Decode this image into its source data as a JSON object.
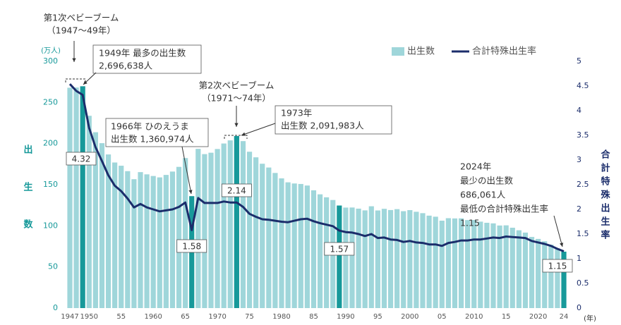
{
  "chart_data": {
    "type": "bar-line",
    "categories": [
      "1947",
      null,
      null,
      "1950",
      null,
      null,
      null,
      null,
      "55",
      null,
      null,
      null,
      null,
      "1960",
      null,
      null,
      null,
      null,
      "65",
      null,
      null,
      null,
      null,
      "1970",
      null,
      null,
      null,
      null,
      "75",
      null,
      null,
      null,
      null,
      "1980",
      null,
      null,
      null,
      null,
      "85",
      null,
      null,
      null,
      null,
      "1990",
      null,
      null,
      null,
      null,
      "95",
      null,
      null,
      null,
      null,
      "2000",
      null,
      null,
      null,
      null,
      "05",
      null,
      null,
      null,
      null,
      "2010",
      null,
      null,
      null,
      null,
      "15",
      null,
      null,
      null,
      null,
      "2020",
      null,
      null,
      null,
      "24"
    ],
    "series": [
      {
        "name": "出生数",
        "color": "#9fd6da",
        "values": [
          267.9,
          268.2,
          269.7,
          233.8,
          213.8,
          200.5,
          186.8,
          177.0,
          173.1,
          166.5,
          156.7,
          165.3,
          162.6,
          160.6,
          158.9,
          161.9,
          166.0,
          171.7,
          182.4,
          136.1,
          193.6,
          187.2,
          188.9,
          193.4,
          200.1,
          203.9,
          209.2,
          203.0,
          190.1,
          183.3,
          175.5,
          170.9,
          164.3,
          157.7,
          152.9,
          151.5,
          150.9,
          149.0,
          143.2,
          138.3,
          134.7,
          131.4,
          124.7,
          122.2,
          122.3,
          120.9,
          118.8,
          123.8,
          118.7,
          120.7,
          119.2,
          120.3,
          117.8,
          119.1,
          117.1,
          115.4,
          112.4,
          111.1,
          106.3,
          109.3,
          109.0,
          109.1,
          107.0,
          107.1,
          105.1,
          103.7,
          103.0,
          100.4,
          100.6,
          97.7,
          94.6,
          91.8,
          86.5,
          84.1,
          81.2,
          77.1,
          72.7,
          68.6
        ]
      },
      {
        "name": "合計特殊出生率",
        "color": "#1b2d6b",
        "axis": "y2",
        "values": [
          4.54,
          4.4,
          4.32,
          3.65,
          3.26,
          2.98,
          2.69,
          2.48,
          2.37,
          2.22,
          2.04,
          2.11,
          2.04,
          2.0,
          1.96,
          1.98,
          2.0,
          2.05,
          2.14,
          1.58,
          2.23,
          2.13,
          2.13,
          2.13,
          2.16,
          2.14,
          2.14,
          2.05,
          1.91,
          1.85,
          1.8,
          1.79,
          1.77,
          1.75,
          1.74,
          1.77,
          1.8,
          1.81,
          1.76,
          1.72,
          1.69,
          1.66,
          1.57,
          1.54,
          1.53,
          1.5,
          1.46,
          1.5,
          1.42,
          1.43,
          1.39,
          1.38,
          1.34,
          1.36,
          1.33,
          1.32,
          1.29,
          1.29,
          1.26,
          1.32,
          1.34,
          1.37,
          1.37,
          1.39,
          1.39,
          1.41,
          1.43,
          1.42,
          1.45,
          1.44,
          1.43,
          1.42,
          1.36,
          1.33,
          1.3,
          1.26,
          1.2,
          1.15
        ]
      }
    ],
    "highlight_color": "#17999a",
    "highlight_indices": [
      2,
      19,
      26,
      42,
      77
    ],
    "ylim": [
      0,
      300
    ],
    "yticks": [
      0,
      50,
      100,
      150,
      200,
      250,
      300
    ],
    "y2lim": [
      0,
      5
    ],
    "y2ticks": [
      0,
      0.5,
      1,
      1.5,
      2,
      2.5,
      3,
      3.5,
      4,
      4.5,
      5
    ],
    "y_unit": "(万人)",
    "y_label": "出生数",
    "y2_label": "合計特殊出生率",
    "x_unit": "(年)",
    "legend": "top-right",
    "annotations": [
      [
        "第1次ベビーブーム",
        "（1947～49年）"
      ],
      [
        "1949年 最多の出生数",
        "2,696,638人"
      ],
      [
        "第2次ベビーブーム",
        "（1971～74年）"
      ],
      [
        "1966年 ひのえうま",
        "出生数 1,360,974人"
      ],
      [
        "1973年",
        "出生数 2,091,983人"
      ],
      [
        "2024年",
        "最少の出生数",
        "686,061人",
        "最低の合計特殊出生率",
        "1.15"
      ]
    ]
  }
}
